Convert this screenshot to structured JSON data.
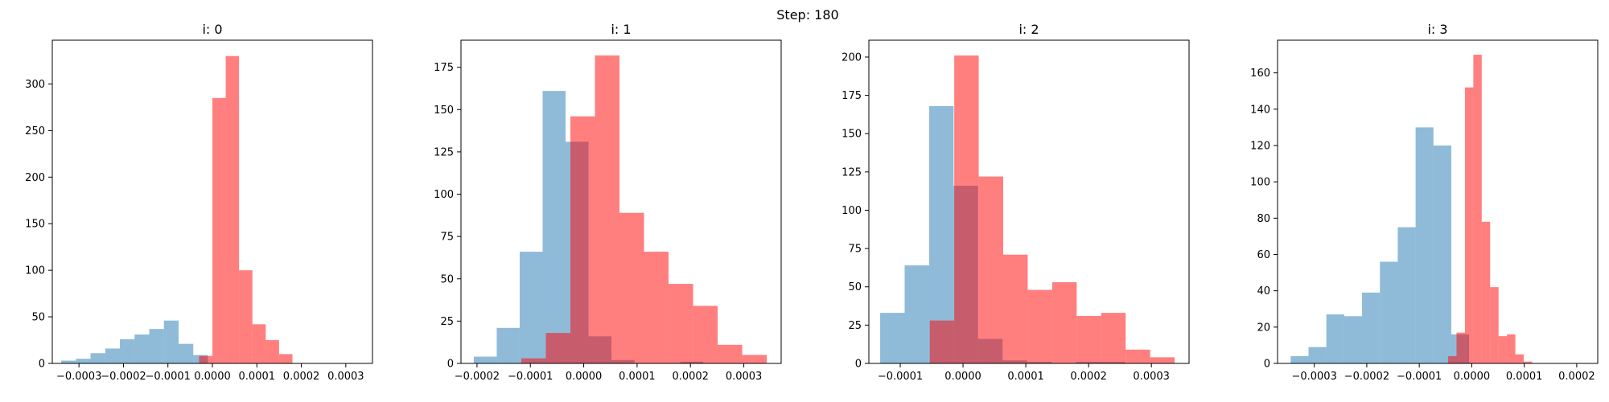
{
  "suptitle": "Step: 180",
  "chart_data": [
    {
      "type": "histogram",
      "title": "i: 0",
      "xlim": [
        -0.00036,
        0.00036
      ],
      "ylim": [
        0,
        347
      ],
      "xticks": [
        -0.0003,
        -0.0002,
        -0.0001,
        0.0,
        0.0001,
        0.0002,
        0.0003
      ],
      "xtick_labels": [
        "−0.0003",
        "−0.0002",
        "−0.0001",
        "0.0000",
        "0.0001",
        "0.0002",
        "0.0003"
      ],
      "yticks": [
        0,
        50,
        100,
        150,
        200,
        250,
        300
      ],
      "ytick_labels": [
        "0",
        "50",
        "100",
        "150",
        "200",
        "250",
        "300"
      ],
      "series": [
        {
          "color": "#1f77b4",
          "alpha": 0.5,
          "bins": [
            [
              -0.00034,
              -0.000307,
              3
            ],
            [
              -0.000307,
              -0.000274,
              5
            ],
            [
              -0.000274,
              -0.000241,
              11
            ],
            [
              -0.000241,
              -0.000208,
              16
            ],
            [
              -0.000208,
              -0.000175,
              26
            ],
            [
              -0.000175,
              -0.000142,
              31
            ],
            [
              -0.000142,
              -0.000109,
              37
            ],
            [
              -0.000109,
              -7.6e-05,
              46
            ],
            [
              -7.6e-05,
              -4.3e-05,
              21
            ],
            [
              -4.3e-05,
              -1e-05,
              9
            ]
          ]
        },
        {
          "color": "#ff0000",
          "alpha": 0.5,
          "bins": [
            [
              -3e-05,
              0.0,
              8
            ],
            [
              0.0,
              3e-05,
              285
            ],
            [
              3e-05,
              6e-05,
              330
            ],
            [
              6e-05,
              9e-05,
              100
            ],
            [
              9e-05,
              0.00012,
              42
            ],
            [
              0.00012,
              0.00015,
              25
            ],
            [
              0.00015,
              0.00018,
              10
            ],
            [
              0.00018,
              0.00021,
              0
            ],
            [
              -9e-05,
              -6e-05,
              0
            ],
            [
              -6e-05,
              -3e-05,
              0
            ]
          ]
        }
      ]
    },
    {
      "type": "histogram",
      "title": "i: 1",
      "xlim": [
        -0.00023,
        0.00037
      ],
      "ylim": [
        0,
        191
      ],
      "xticks": [
        -0.0002,
        -0.0001,
        0.0,
        0.0001,
        0.0002,
        0.0003
      ],
      "xtick_labels": [
        "−0.0002",
        "−0.0001",
        "0.0000",
        "0.0001",
        "0.0002",
        "0.0003"
      ],
      "yticks": [
        0,
        25,
        50,
        75,
        100,
        125,
        150,
        175
      ],
      "ytick_labels": [
        "0",
        "25",
        "50",
        "75",
        "100",
        "125",
        "150",
        "175"
      ],
      "series": [
        {
          "color": "#1f77b4",
          "alpha": 0.5,
          "bins": [
            [
              -0.000206,
              -0.000163,
              4
            ],
            [
              -0.000163,
              -0.00012,
              21
            ],
            [
              -0.00012,
              -7.7e-05,
              66
            ],
            [
              -7.7e-05,
              -3.4e-05,
              161
            ],
            [
              -3.4e-05,
              9e-06,
              131
            ],
            [
              9e-06,
              5.2e-05,
              16
            ],
            [
              5.2e-05,
              9.5e-05,
              2
            ],
            [
              9.5e-05,
              0.000138,
              0
            ],
            [
              0.000138,
              0.000181,
              0
            ],
            [
              0.000181,
              0.000224,
              1
            ]
          ]
        },
        {
          "color": "#ff0000",
          "alpha": 0.5,
          "bins": [
            [
              -0.000117,
              -7.1e-05,
              3
            ],
            [
              -7.1e-05,
              -2.5e-05,
              18
            ],
            [
              -2.5e-05,
              2.1e-05,
              146
            ],
            [
              2.1e-05,
              6.7e-05,
              182
            ],
            [
              6.7e-05,
              0.000113,
              89
            ],
            [
              0.000113,
              0.000159,
              66
            ],
            [
              0.000159,
              0.000205,
              47
            ],
            [
              0.000205,
              0.000251,
              34
            ],
            [
              0.000251,
              0.000297,
              11
            ],
            [
              0.000297,
              0.000343,
              5
            ]
          ]
        }
      ]
    },
    {
      "type": "histogram",
      "title": "i: 2",
      "xlim": [
        -0.00015,
        0.00036
      ],
      "ylim": [
        0,
        211
      ],
      "xticks": [
        -0.0001,
        0.0,
        0.0001,
        0.0002,
        0.0003
      ],
      "xtick_labels": [
        "−0.0001",
        "0.0000",
        "0.0001",
        "0.0002",
        "0.0003"
      ],
      "yticks": [
        0,
        25,
        50,
        75,
        100,
        125,
        150,
        175,
        200
      ],
      "ytick_labels": [
        "0",
        "25",
        "50",
        "75",
        "100",
        "125",
        "150",
        "175",
        "200"
      ],
      "series": [
        {
          "color": "#1f77b4",
          "alpha": 0.5,
          "bins": [
            [
              -0.000132,
              -9.3e-05,
              33
            ],
            [
              -9.3e-05,
              -5.4e-05,
              64
            ],
            [
              -5.4e-05,
              -1.5e-05,
              168
            ],
            [
              -1.5e-05,
              2.4e-05,
              116
            ],
            [
              2.4e-05,
              6.3e-05,
              16
            ],
            [
              6.3e-05,
              0.000102,
              2
            ],
            [
              0.000102,
              0.000141,
              1
            ],
            [
              0.000141,
              0.00018,
              0
            ],
            [
              0.00018,
              0.000219,
              1
            ],
            [
              0.000219,
              0.000258,
              1
            ]
          ]
        },
        {
          "color": "#ff0000",
          "alpha": 0.5,
          "bins": [
            [
              -5.3e-05,
              -1.4e-05,
              28
            ],
            [
              -1.4e-05,
              2.5e-05,
              201
            ],
            [
              2.5e-05,
              6.4e-05,
              122
            ],
            [
              6.4e-05,
              0.000103,
              71
            ],
            [
              0.000103,
              0.000142,
              48
            ],
            [
              0.000142,
              0.000181,
              53
            ],
            [
              0.000181,
              0.00022,
              31
            ],
            [
              0.00022,
              0.000259,
              33
            ],
            [
              0.000259,
              0.000298,
              9
            ],
            [
              0.000298,
              0.000337,
              4
            ]
          ]
        }
      ]
    },
    {
      "type": "histogram",
      "title": "i: 3",
      "xlim": [
        -0.00037,
        0.00024
      ],
      "ylim": [
        0,
        178
      ],
      "xticks": [
        -0.0003,
        -0.0002,
        -0.0001,
        0.0,
        0.0001,
        0.0002
      ],
      "xtick_labels": [
        "−0.0003",
        "−0.0002",
        "−0.0001",
        "0.0000",
        "0.0001",
        "0.0002"
      ],
      "yticks": [
        0,
        20,
        40,
        60,
        80,
        100,
        120,
        140,
        160
      ],
      "ytick_labels": [
        "0",
        "20",
        "40",
        "60",
        "80",
        "100",
        "120",
        "140",
        "160"
      ],
      "series": [
        {
          "color": "#1f77b4",
          "alpha": 0.5,
          "bins": [
            [
              -0.000345,
              -0.000311,
              4
            ],
            [
              -0.000311,
              -0.000277,
              9
            ],
            [
              -0.000277,
              -0.000243,
              27
            ],
            [
              -0.000243,
              -0.000209,
              26
            ],
            [
              -0.000209,
              -0.000175,
              39
            ],
            [
              -0.000175,
              -0.000141,
              56
            ],
            [
              -0.000141,
              -0.000107,
              75
            ],
            [
              -0.000107,
              -7.3e-05,
              130
            ],
            [
              -7.3e-05,
              -3.9e-05,
              120
            ],
            [
              -3.9e-05,
              -5e-06,
              16
            ]
          ]
        },
        {
          "color": "#ff0000",
          "alpha": 0.5,
          "bins": [
            [
              -4.5e-05,
              -2.9e-05,
              4
            ],
            [
              -2.9e-05,
              -1.3e-05,
              17
            ],
            [
              -1.3e-05,
              3e-06,
              152
            ],
            [
              3e-06,
              1.9e-05,
              170
            ],
            [
              1.9e-05,
              3.5e-05,
              78
            ],
            [
              3.5e-05,
              5.1e-05,
              42
            ],
            [
              5.1e-05,
              6.7e-05,
              15
            ],
            [
              6.7e-05,
              8.3e-05,
              16
            ],
            [
              8.3e-05,
              9.9e-05,
              5
            ],
            [
              9.9e-05,
              0.000115,
              1
            ]
          ]
        }
      ]
    }
  ]
}
